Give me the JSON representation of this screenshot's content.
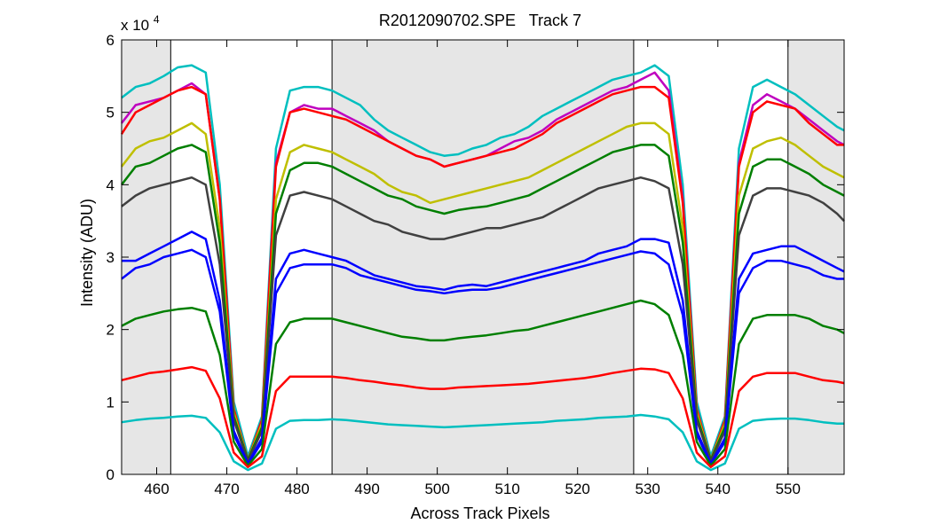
{
  "chart_data": {
    "type": "line",
    "title": "R2012090702.SPE   Track 7",
    "xlabel": "Across Track Pixels",
    "ylabel": "Intensity (ADU)",
    "y_multiplier_label": "x 10",
    "y_multiplier_exponent": "4",
    "xlim": [
      455,
      558
    ],
    "ylim": [
      0,
      60000
    ],
    "xticks": [
      460,
      470,
      480,
      490,
      500,
      510,
      520,
      530,
      540,
      550
    ],
    "yticks": [
      0,
      10000,
      20000,
      30000,
      40000,
      50000,
      60000
    ],
    "ytick_labels": [
      "0",
      "1",
      "2",
      "3",
      "4",
      "5",
      "6"
    ],
    "grid": false,
    "shaded_regions": [
      [
        455,
        462
      ],
      [
        485,
        528
      ],
      [
        550,
        558
      ]
    ],
    "vertical_lines": [
      462,
      485,
      528,
      550
    ],
    "x": [
      455,
      457,
      459,
      461,
      463,
      465,
      467,
      469,
      471,
      473,
      475,
      477,
      479,
      481,
      483,
      485,
      487,
      489,
      491,
      493,
      495,
      497,
      499,
      501,
      503,
      505,
      507,
      509,
      511,
      513,
      515,
      517,
      519,
      521,
      523,
      525,
      527,
      529,
      531,
      533,
      535,
      537,
      539,
      541,
      543,
      545,
      547,
      549,
      551,
      553,
      555,
      557,
      558
    ],
    "series": [
      {
        "name": "cyan-top",
        "color": "#00bfbf",
        "values": [
          52000,
          53500,
          54000,
          55000,
          56200,
          56500,
          55500,
          40000,
          10000,
          2500,
          8000,
          45000,
          53000,
          53500,
          53500,
          53000,
          52000,
          51000,
          49000,
          47500,
          46500,
          45500,
          44500,
          44000,
          44200,
          45000,
          45500,
          46500,
          47000,
          48000,
          49500,
          50500,
          51500,
          52500,
          53500,
          54500,
          55000,
          55500,
          56500,
          55000,
          40000,
          10000,
          2500,
          8000,
          45000,
          53500,
          54500,
          53500,
          52500,
          51000,
          49500,
          48000,
          47500
        ]
      },
      {
        "name": "magenta",
        "color": "#bf00bf",
        "values": [
          48500,
          51000,
          51500,
          52000,
          53000,
          54000,
          52500,
          38000,
          9000,
          2000,
          7500,
          43000,
          50000,
          51000,
          50500,
          50500,
          49500,
          48500,
          47500,
          46000,
          45000,
          44000,
          43500,
          42500,
          43000,
          43500,
          44000,
          45000,
          46000,
          46500,
          47500,
          49000,
          50000,
          51000,
          52000,
          53000,
          53500,
          54500,
          55500,
          53000,
          38000,
          9000,
          2000,
          7500,
          43000,
          51000,
          52500,
          51500,
          50500,
          49000,
          47500,
          46000,
          45500
        ]
      },
      {
        "name": "red-top",
        "color": "#ff0000",
        "values": [
          47000,
          50000,
          51000,
          52000,
          53000,
          53500,
          52500,
          38000,
          9000,
          2000,
          7500,
          42500,
          50000,
          50500,
          50000,
          49500,
          49000,
          48000,
          47000,
          46000,
          45000,
          44000,
          43500,
          42500,
          43000,
          43500,
          44000,
          44500,
          45000,
          46000,
          47000,
          48500,
          49500,
          50500,
          51500,
          52500,
          53000,
          53500,
          53500,
          52000,
          37500,
          9000,
          2000,
          7500,
          42500,
          50000,
          51500,
          51000,
          50500,
          48500,
          47000,
          45500,
          45500
        ]
      },
      {
        "name": "yellow",
        "color": "#bfbf00",
        "values": [
          42500,
          45000,
          46000,
          46500,
          47500,
          48500,
          47000,
          34000,
          8500,
          2000,
          7000,
          38000,
          44500,
          45500,
          45000,
          44500,
          43500,
          42500,
          41500,
          40000,
          39000,
          38500,
          37500,
          38000,
          38500,
          39000,
          39500,
          40000,
          40500,
          41000,
          42000,
          43000,
          44000,
          45000,
          46000,
          47000,
          48000,
          48500,
          48500,
          47000,
          34000,
          8500,
          2000,
          7000,
          38500,
          45000,
          46000,
          46500,
          45500,
          44000,
          42500,
          41500,
          41000
        ]
      },
      {
        "name": "green-upper",
        "color": "#007f00",
        "values": [
          40000,
          42500,
          43000,
          44000,
          45000,
          45500,
          44500,
          32000,
          8000,
          2000,
          6500,
          36000,
          42000,
          43000,
          43000,
          42500,
          41500,
          40500,
          39500,
          38500,
          38000,
          37000,
          36500,
          36000,
          36500,
          36800,
          37000,
          37500,
          38000,
          38500,
          39500,
          40500,
          41500,
          42500,
          43500,
          44500,
          45000,
          45500,
          45500,
          44000,
          32000,
          8000,
          2000,
          6500,
          36000,
          42500,
          43500,
          43500,
          42500,
          41500,
          40000,
          39000,
          38500
        ]
      },
      {
        "name": "dark-gray",
        "color": "#404040",
        "values": [
          37000,
          38500,
          39500,
          40000,
          40500,
          41000,
          40000,
          29000,
          7500,
          1800,
          6000,
          33000,
          38500,
          39000,
          38500,
          38000,
          37000,
          36000,
          35000,
          34500,
          33500,
          33000,
          32500,
          32500,
          33000,
          33500,
          34000,
          34000,
          34500,
          35000,
          35500,
          36500,
          37500,
          38500,
          39500,
          40000,
          40500,
          41000,
          40500,
          39500,
          29000,
          7500,
          1800,
          6000,
          33000,
          38500,
          39500,
          39500,
          39000,
          38500,
          37500,
          36000,
          35000
        ]
      },
      {
        "name": "blue-1",
        "color": "#0000ff",
        "values": [
          29500,
          29500,
          30500,
          31500,
          32500,
          33500,
          32500,
          24000,
          6000,
          1500,
          5000,
          27000,
          30500,
          31000,
          30500,
          30000,
          29500,
          28500,
          27500,
          27000,
          26500,
          26000,
          25800,
          25500,
          26000,
          26200,
          26000,
          26500,
          27000,
          27500,
          28000,
          28500,
          29000,
          29500,
          30500,
          31000,
          31500,
          32500,
          32500,
          32000,
          24000,
          6000,
          1500,
          5000,
          27000,
          30500,
          31000,
          31500,
          31500,
          30500,
          29500,
          28500,
          28000
        ]
      },
      {
        "name": "blue-2",
        "color": "#0000ff",
        "values": [
          27000,
          28500,
          29000,
          30000,
          30500,
          31000,
          30000,
          22500,
          5500,
          1400,
          4500,
          25000,
          28500,
          29000,
          29000,
          29000,
          28500,
          27500,
          27000,
          26500,
          26000,
          25500,
          25300,
          25000,
          25300,
          25500,
          25500,
          25800,
          26300,
          26800,
          27300,
          27800,
          28300,
          28800,
          29300,
          29800,
          30300,
          30800,
          30500,
          29000,
          22000,
          5500,
          1400,
          4500,
          25000,
          28500,
          29500,
          29500,
          29000,
          28500,
          27500,
          27000,
          27000
        ]
      },
      {
        "name": "green-lower",
        "color": "#007f00",
        "values": [
          20500,
          21500,
          22000,
          22500,
          22800,
          23000,
          22500,
          16500,
          4500,
          1200,
          3500,
          18000,
          21000,
          21500,
          21500,
          21500,
          21000,
          20500,
          20000,
          19500,
          19000,
          18800,
          18500,
          18500,
          18800,
          19000,
          19200,
          19500,
          19800,
          20000,
          20500,
          21000,
          21500,
          22000,
          22500,
          23000,
          23500,
          24000,
          23500,
          22000,
          16500,
          4500,
          1200,
          3500,
          18000,
          21500,
          22000,
          22000,
          22000,
          21500,
          20500,
          20000,
          19500
        ]
      },
      {
        "name": "red-lower",
        "color": "#ff0000",
        "values": [
          13000,
          13500,
          14000,
          14200,
          14500,
          14800,
          14300,
          10500,
          3000,
          1000,
          2500,
          11500,
          13500,
          13500,
          13500,
          13500,
          13300,
          13000,
          12800,
          12500,
          12300,
          12000,
          11800,
          11800,
          12000,
          12100,
          12200,
          12300,
          12400,
          12500,
          12700,
          12900,
          13100,
          13300,
          13600,
          14000,
          14300,
          14600,
          14500,
          14000,
          10500,
          3000,
          1000,
          2500,
          11500,
          13500,
          14000,
          14000,
          14000,
          13500,
          13000,
          12800,
          12600
        ]
      },
      {
        "name": "cyan-bottom",
        "color": "#00bfbf",
        "values": [
          7200,
          7500,
          7700,
          7800,
          8000,
          8100,
          7800,
          5800,
          1800,
          600,
          1500,
          6300,
          7400,
          7500,
          7500,
          7600,
          7500,
          7300,
          7100,
          6900,
          6800,
          6700,
          6600,
          6500,
          6600,
          6700,
          6800,
          6900,
          7000,
          7100,
          7200,
          7400,
          7500,
          7600,
          7800,
          7900,
          8000,
          8200,
          8000,
          7600,
          5800,
          1800,
          600,
          1500,
          6300,
          7400,
          7600,
          7700,
          7700,
          7500,
          7200,
          7000,
          7000
        ]
      }
    ]
  }
}
